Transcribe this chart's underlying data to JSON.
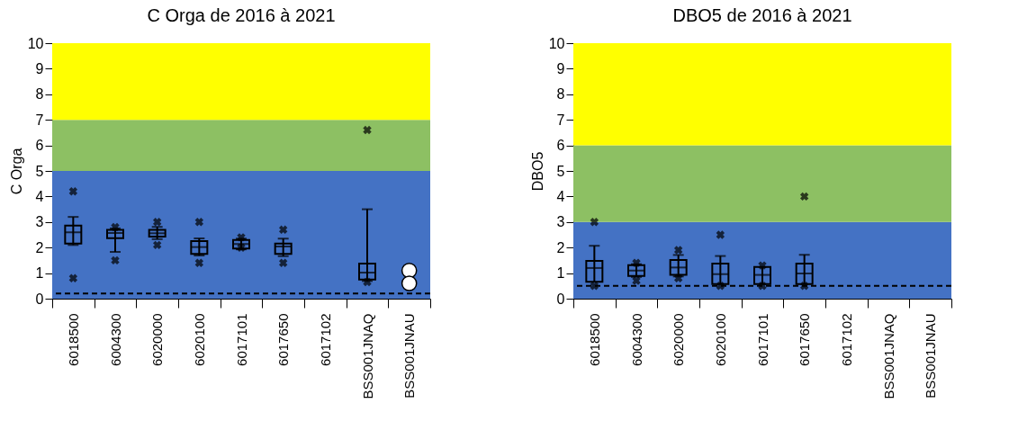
{
  "chart_data": [
    {
      "type": "box",
      "title": "C Orga de 2016 à 2021",
      "ylabel": "C Orga",
      "categories": [
        "6018500",
        "6004300",
        "6020000",
        "6020100",
        "6017101",
        "6017650",
        "6017102",
        "BSS001JNAQ",
        "BSS001JNAU"
      ],
      "ylim": [
        0,
        10
      ],
      "yticks": [
        0,
        1,
        2,
        3,
        4,
        5,
        6,
        7,
        8,
        9,
        10
      ],
      "bands": [
        {
          "axis": "y",
          "from": 0,
          "to": 5,
          "color": "#4472c4"
        },
        {
          "axis": "y",
          "from": 5,
          "to": 7,
          "color": "#8dc063"
        },
        {
          "axis": "y",
          "from": 7,
          "to": 10,
          "color": "#ffff00"
        }
      ],
      "ref_lines": [
        {
          "axis": "y",
          "value": 0.2,
          "color": "#000000",
          "line_style": "dashed"
        }
      ],
      "boxes": [
        {
          "low": 2.1,
          "q1": 2.16,
          "median": 2.6,
          "q3": 2.86,
          "high": 3.2,
          "outliers": [
            4.2,
            0.8
          ]
        },
        {
          "low": 1.83,
          "q1": 2.37,
          "median": 2.57,
          "q3": 2.69,
          "high": 2.75,
          "outliers": [
            2.8,
            1.5
          ]
        },
        {
          "low": 2.33,
          "q1": 2.43,
          "median": 2.56,
          "q3": 2.69,
          "high": 2.81,
          "outliers": [
            3.0,
            2.1
          ]
        },
        {
          "low": 1.69,
          "q1": 1.75,
          "median": 2.02,
          "q3": 2.25,
          "high": 2.36,
          "outliers": [
            3.0,
            1.4
          ]
        },
        {
          "low": 1.93,
          "q1": 1.96,
          "median": 2.14,
          "q3": 2.3,
          "high": 2.35,
          "outliers": [
            2.4,
            2.0
          ]
        },
        {
          "low": 1.66,
          "q1": 1.75,
          "median": 2.04,
          "q3": 2.16,
          "high": 2.35,
          "outliers": [
            2.7,
            1.4
          ]
        },
        null,
        {
          "low": 0.69,
          "q1": 0.75,
          "median": 1.02,
          "q3": 1.37,
          "high": 3.5,
          "outliers": [
            6.6,
            0.65
          ]
        },
        null
      ],
      "series": [
        {
          "type": "scatter",
          "x": [
            "BSS001JNAU",
            "BSS001JNAU"
          ],
          "values": [
            1.1,
            0.6
          ],
          "color": "#ffffff",
          "marker": "circle"
        }
      ]
    },
    {
      "type": "box",
      "title": "DBO5 de 2016 à 2021",
      "ylabel": "DBO5",
      "categories": [
        "6018500",
        "6004300",
        "6020000",
        "6020100",
        "6017101",
        "6017650",
        "6017102",
        "BSS001JNAQ",
        "BSS001JNAU"
      ],
      "ylim": [
        0,
        10
      ],
      "yticks": [
        0,
        1,
        2,
        3,
        4,
        5,
        6,
        7,
        8,
        9,
        10
      ],
      "bands": [
        {
          "axis": "y",
          "from": 0,
          "to": 3,
          "color": "#4472c4"
        },
        {
          "axis": "y",
          "from": 3,
          "to": 6,
          "color": "#8dc063"
        },
        {
          "axis": "y",
          "from": 6,
          "to": 10,
          "color": "#ffff00"
        }
      ],
      "ref_lines": [
        {
          "axis": "y",
          "value": 0.5,
          "color": "#000000",
          "line_style": "dashed"
        }
      ],
      "boxes": [
        {
          "low": 0.66,
          "q1": 0.66,
          "median": 1.2,
          "q3": 1.48,
          "high": 2.07,
          "outliers": [
            3.0,
            0.5
          ]
        },
        {
          "low": 0.85,
          "q1": 0.89,
          "median": 1.1,
          "q3": 1.31,
          "high": 1.35,
          "outliers": [
            1.4,
            0.7
          ]
        },
        {
          "low": 0.87,
          "q1": 0.93,
          "median": 1.22,
          "q3": 1.51,
          "high": 1.71,
          "outliers": [
            1.9,
            0.8
          ]
        },
        {
          "low": 0.57,
          "q1": 0.57,
          "median": 0.96,
          "q3": 1.37,
          "high": 1.67,
          "outliers": [
            2.5,
            0.5
          ]
        },
        {
          "low": 0.57,
          "q1": 0.57,
          "median": 0.93,
          "q3": 1.24,
          "high": 1.24,
          "outliers": [
            1.3,
            0.5
          ]
        },
        {
          "low": 0.57,
          "q1": 0.57,
          "median": 0.99,
          "q3": 1.37,
          "high": 1.72,
          "outliers": [
            4.0,
            0.5
          ]
        },
        null,
        null,
        null
      ]
    }
  ]
}
